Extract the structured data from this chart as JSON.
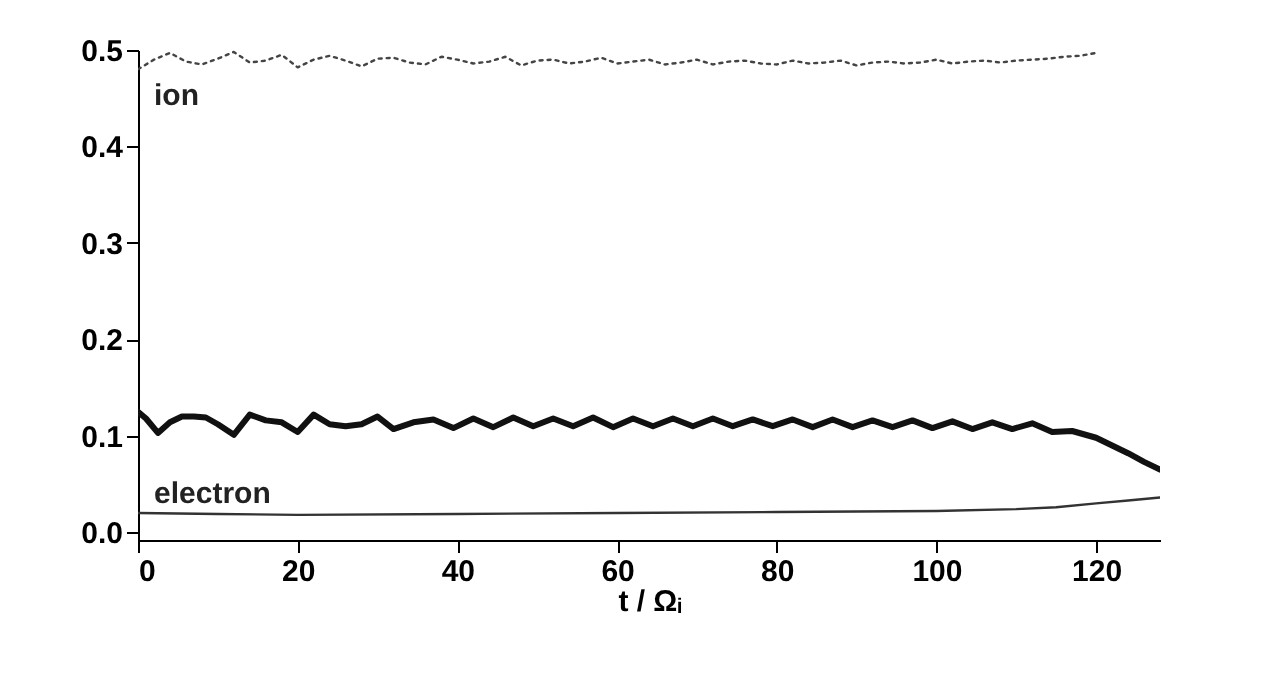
{
  "chart_data": {
    "type": "line",
    "xlabel": "t / Ωᵢ",
    "xlim": [
      0,
      128
    ],
    "ylim": [
      -0.008,
      0.5
    ],
    "xticks": [
      0,
      20,
      40,
      60,
      80,
      100,
      120
    ],
    "yticks": [
      {
        "value": 0,
        "label": "0.0"
      },
      0.1,
      0.2,
      0.3,
      0.4,
      0.5
    ],
    "grid": false,
    "series": [
      {
        "name": "ion",
        "color": "#444444",
        "line_style": "dotted",
        "x": [
          0,
          2,
          4,
          6,
          8,
          10,
          12,
          14,
          16,
          18,
          20,
          22,
          24,
          26,
          28,
          30,
          32,
          34,
          36,
          38,
          40,
          42,
          44,
          46,
          48,
          50,
          52,
          54,
          56,
          58,
          60,
          62,
          64,
          66,
          68,
          70,
          72,
          74,
          76,
          78,
          80,
          82,
          84,
          86,
          88,
          90,
          92,
          94,
          96,
          98,
          100,
          102,
          104,
          106,
          108,
          110,
          112,
          114,
          116,
          118,
          120
        ],
        "values": [
          0.48,
          0.49,
          0.497,
          0.488,
          0.485,
          0.491,
          0.498,
          0.487,
          0.489,
          0.495,
          0.482,
          0.49,
          0.494,
          0.489,
          0.483,
          0.491,
          0.492,
          0.487,
          0.485,
          0.493,
          0.49,
          0.486,
          0.488,
          0.493,
          0.484,
          0.489,
          0.49,
          0.486,
          0.488,
          0.492,
          0.486,
          0.488,
          0.49,
          0.485,
          0.487,
          0.49,
          0.485,
          0.488,
          0.489,
          0.486,
          0.485,
          0.489,
          0.486,
          0.487,
          0.489,
          0.484,
          0.487,
          0.488,
          0.486,
          0.487,
          0.49,
          0.486,
          0.488,
          0.489,
          0.487,
          0.489,
          0.49,
          0.491,
          0.493,
          0.494,
          0.497
        ]
      },
      {
        "color": "#111111",
        "line_style": "solid",
        "x": [
          0,
          1,
          2.5,
          4,
          5.5,
          7,
          8.5,
          10,
          12,
          14,
          16,
          18,
          20,
          22,
          24,
          26,
          28,
          30,
          32,
          34.5,
          37,
          39.5,
          42,
          44.5,
          47,
          49.5,
          52,
          54.5,
          57,
          59.5,
          62,
          64.5,
          67,
          69.5,
          72,
          74.5,
          77,
          79.5,
          82,
          84.5,
          87,
          89.5,
          92,
          94.5,
          97,
          99.5,
          102,
          104.5,
          107,
          109.5,
          112,
          114.5,
          117,
          120,
          122,
          124,
          126,
          128
        ],
        "values": [
          0.125,
          0.118,
          0.103,
          0.114,
          0.12,
          0.12,
          0.119,
          0.112,
          0.101,
          0.122,
          0.116,
          0.114,
          0.104,
          0.122,
          0.112,
          0.11,
          0.112,
          0.12,
          0.107,
          0.114,
          0.117,
          0.108,
          0.118,
          0.109,
          0.119,
          0.11,
          0.118,
          0.11,
          0.119,
          0.109,
          0.118,
          0.11,
          0.118,
          0.11,
          0.118,
          0.11,
          0.117,
          0.11,
          0.117,
          0.109,
          0.117,
          0.109,
          0.116,
          0.109,
          0.116,
          0.108,
          0.115,
          0.107,
          0.114,
          0.107,
          0.113,
          0.104,
          0.105,
          0.098,
          0.09,
          0.082,
          0.073,
          0.065
        ]
      },
      {
        "name": "electron",
        "color": "#333333",
        "line_style": "solid",
        "x": [
          0,
          10,
          20,
          40,
          60,
          80,
          100,
          110,
          115,
          120,
          124,
          128
        ],
        "values": [
          0.02,
          0.019,
          0.018,
          0.019,
          0.02,
          0.021,
          0.022,
          0.024,
          0.026,
          0.03,
          0.033,
          0.036
        ]
      }
    ]
  }
}
